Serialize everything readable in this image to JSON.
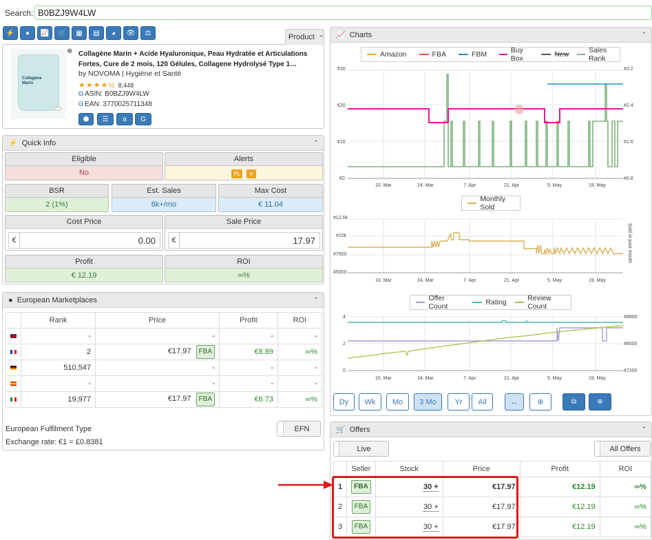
{
  "search": {
    "label": "Search:",
    "value": "B0BZJ9W4LW"
  },
  "toolbar": {
    "icons": [
      "bolt-icon",
      "globe-icon",
      "chart-icon",
      "cart-icon",
      "calculator-icon",
      "table-icon",
      "pie-icon",
      "eye-icon",
      "scale-icon"
    ]
  },
  "product": {
    "tab_label": "Product",
    "title_line1": "Collagène Marin + Acide Hyaluronique, Peau Hydratée et Articulations",
    "title_line2": "Fortes, Cure de 2 mois, 120 Gélules, Collagene Hydrolysé Type 1…",
    "brand_line": "by NOVOMA | Hygiène et Santé",
    "rating": 4.5,
    "reviews": "8,448",
    "asin": "ASIN: B0BZJ9W4LW",
    "ean": "EAN: 3770025711348",
    "image_text": [
      "Collagène",
      "Marin"
    ]
  },
  "quick_info": {
    "title": "Quick Info",
    "eligible": {
      "label": "Eligible",
      "value": "No"
    },
    "alerts": {
      "label": "Alerts",
      "badges": [
        "PL",
        "V"
      ]
    },
    "bsr": {
      "label": "BSR",
      "value": "2 (1%)"
    },
    "est_sales": {
      "label": "Est. Sales",
      "value": "8k+/mo"
    },
    "max_cost": {
      "label": "Max Cost",
      "value": "€ 11.04"
    },
    "cost_price": {
      "label": "Cost Price",
      "currency": "€",
      "value": "0.00"
    },
    "sale_price": {
      "label": "Sale Price",
      "currency": "€",
      "value": "17.97"
    },
    "profit": {
      "label": "Profit",
      "value": "€ 12.19"
    },
    "roi": {
      "label": "ROI",
      "value": "∞%"
    }
  },
  "marketplaces": {
    "title": "European Marketplaces",
    "headers": [
      "Rank",
      "Price",
      "Profit",
      "ROI"
    ],
    "rows": [
      {
        "flag": "uk",
        "rank": "-",
        "price": "-",
        "fba": "",
        "profit": "-",
        "roi": "-"
      },
      {
        "flag": "fr",
        "rank": "2",
        "price": "€17.97",
        "fba": "FBA",
        "profit": "€8.89",
        "roi": "∞%"
      },
      {
        "flag": "de",
        "rank": "510,547",
        "price": "-",
        "fba": "",
        "profit": "-",
        "roi": "-"
      },
      {
        "flag": "es",
        "rank": "-",
        "price": "-",
        "fba": "",
        "profit": "-",
        "roi": "-"
      },
      {
        "flag": "it",
        "rank": "19,977",
        "price": "€17.97",
        "fba": "FBA",
        "profit": "€6.73",
        "roi": "∞%"
      }
    ],
    "fulfilment_label": "European Fulfilment Type",
    "efn_label": "EFN",
    "exchange": "Exchange rate: €1 = £0.8381"
  },
  "charts": {
    "title": "Charts",
    "legend1": [
      "Amazon",
      "FBA",
      "FBM",
      "Buy Box",
      "New",
      "Sales Rank"
    ],
    "legend1_colors": [
      "#f0a830",
      "#f05a28",
      "#1f8fc9",
      "#e0159a",
      "#555555",
      "#7fb27f"
    ],
    "legend2": [
      "Monthly Sold"
    ],
    "legend3": [
      "Offer Count",
      "Rating",
      "Review Count"
    ],
    "legend3_colors": [
      "#a89ad8",
      "#4cb9b0",
      "#a8c040"
    ],
    "x_ticks": [
      "10. Mar",
      "24. Mar",
      "7. Apr",
      "21. Apr",
      "5. May",
      "19. May"
    ],
    "chart1_left": [
      "€30",
      "€20",
      "€10",
      "€0"
    ],
    "chart1_right": [
      "#3.2",
      "#2.4",
      "#1.6",
      "#0.8"
    ],
    "chart2_left": [
      "#12.5k",
      "#10k",
      "#7500",
      "#5000"
    ],
    "chart2_right": "Sold in past month",
    "chart3_left": [
      "4",
      "2",
      "0"
    ],
    "chart3_right": [
      "#8800",
      "#8000",
      "#7200"
    ],
    "range_buttons": [
      "Dy",
      "Wk",
      "Mo",
      "3 Mo",
      "Yr",
      "All"
    ],
    "active_range": "3 Mo"
  },
  "chart_data": [
    {
      "type": "line",
      "series": [
        {
          "name": "Buy Box",
          "x": [
            "Feb 27",
            "Mar 30",
            "Apr 5",
            "May 1",
            "May 8",
            "Jun 2"
          ],
          "values": [
            19,
            16,
            19,
            16,
            19,
            19
          ]
        },
        {
          "name": "FBM",
          "x": [
            "May 5",
            "Jun 2"
          ],
          "values": [
            26,
            26
          ]
        },
        {
          "name": "Sales Rank",
          "note_unit": "#",
          "values": [
            1,
            3,
            1,
            2.2,
            1,
            2.2
          ]
        }
      ],
      "ylim": [
        0,
        30
      ]
    },
    {
      "type": "line",
      "series": [
        {
          "name": "Monthly Sold",
          "x": [
            "Feb 27",
            "Mar 29",
            "Apr 5",
            "May 1",
            "Jun 2"
          ],
          "values": [
            9000,
            9500,
            10000,
            9000,
            8500
          ]
        }
      ],
      "ylim": [
        5000,
        12500
      ]
    },
    {
      "type": "line",
      "series": [
        {
          "name": "Offer Count",
          "values": [
            2,
            2,
            3,
            3
          ]
        },
        {
          "name": "Rating",
          "values": [
            3.5,
            3.5,
            3.5,
            3.5
          ]
        },
        {
          "name": "Review Count",
          "values": [
            7400,
            7800,
            8200,
            8600
          ]
        }
      ],
      "ylim": [
        0,
        4
      ]
    }
  ],
  "offers": {
    "title": "Offers",
    "live_label": "Live",
    "all_label": "All Offers",
    "headers": [
      "Seller",
      "Stock",
      "Price",
      "Profit",
      "ROI"
    ],
    "rows": [
      {
        "idx": "1",
        "seller": "FBA",
        "stock": "30 +",
        "price": "€17.97",
        "profit": "€12.19",
        "roi": "∞%"
      },
      {
        "idx": "2",
        "seller": "FBA",
        "stock": "30 +",
        "price": "€17.97",
        "profit": "€12.19",
        "roi": "∞%"
      },
      {
        "idx": "3",
        "seller": "FBA",
        "stock": "30 +",
        "price": "€17.97",
        "profit": "€12.19",
        "roi": "∞%"
      }
    ]
  }
}
